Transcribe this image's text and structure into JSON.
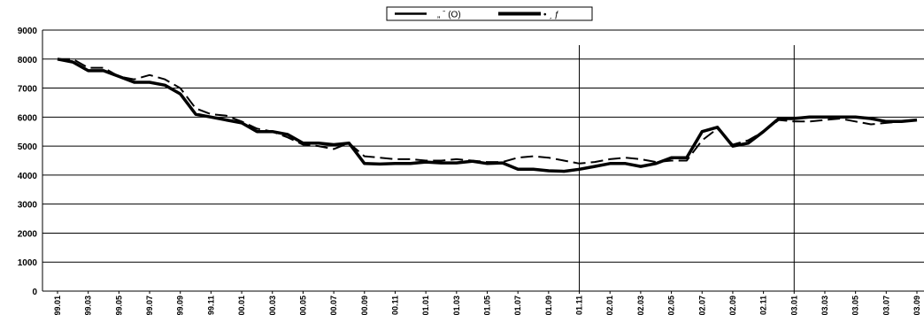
{
  "chart_data": {
    "type": "line",
    "title": "",
    "xlabel": "",
    "ylabel": "",
    "ylim": [
      0,
      9000
    ],
    "y_ticks": [
      "0",
      "1000",
      "2000",
      "3000",
      "4000",
      "5000",
      "6000",
      "7000",
      "8000",
      "9000"
    ],
    "x_tick_labels": [
      "99.01",
      "99.03",
      "99.05",
      "99.07",
      "99.09",
      "99.11",
      "00.01",
      "00.03",
      "00.05",
      "00.07",
      "00.09",
      "00.11",
      "01.01",
      "01.03",
      "01.05",
      "01.07",
      "01.09",
      "01.11",
      "02.01",
      "02.03",
      "02.05",
      "02.07",
      "02.09",
      "02.11",
      "03.01",
      "03.03",
      "03.05",
      "03.07",
      "03.09"
    ],
    "grid": "horizontal",
    "vertical_markers_at": [
      "01.11",
      "03.01"
    ],
    "legend": {
      "placement": "top-center",
      "entries": [
        {
          "label": "　„ ˉ (O)",
          "style": "dashed"
        },
        {
          "label": "• ˏ ƒ",
          "style": "solid-thick"
        }
      ]
    },
    "series": [
      {
        "style": "solid-thick",
        "values": [
          8000,
          7900,
          7600,
          7600,
          7400,
          7200,
          7200,
          7100,
          6800,
          6100,
          6000,
          5900,
          5800,
          5500,
          5500,
          5400,
          5100,
          5100,
          5050,
          5100,
          4400,
          4380,
          4400,
          4400,
          4450,
          4420,
          4420,
          4480,
          4400,
          4420,
          4200,
          4200,
          4150,
          4130,
          4200,
          4300,
          4400,
          4400,
          4300,
          4400,
          4600,
          4600,
          5500,
          5650,
          5000,
          5100,
          5500,
          5950,
          5950,
          6000,
          6000,
          6000,
          6000,
          5950,
          5850,
          5850,
          5900
        ]
      },
      {
        "style": "dashed",
        "values": [
          8000,
          8000,
          7700,
          7700,
          7400,
          7300,
          7450,
          7300,
          7000,
          6300,
          6100,
          6050,
          5850,
          5600,
          5500,
          5300,
          5050,
          5000,
          4900,
          5100,
          4650,
          4600,
          4550,
          4550,
          4500,
          4500,
          4550,
          4500,
          4450,
          4450,
          4600,
          4650,
          4600,
          4500,
          4400,
          4450,
          4550,
          4600,
          4550,
          4450,
          4500,
          4500,
          5200,
          5600,
          5050,
          5200,
          5500,
          5900,
          5850,
          5850,
          5900,
          5950,
          5850,
          5750,
          5800,
          5850,
          5900
        ]
      }
    ]
  }
}
